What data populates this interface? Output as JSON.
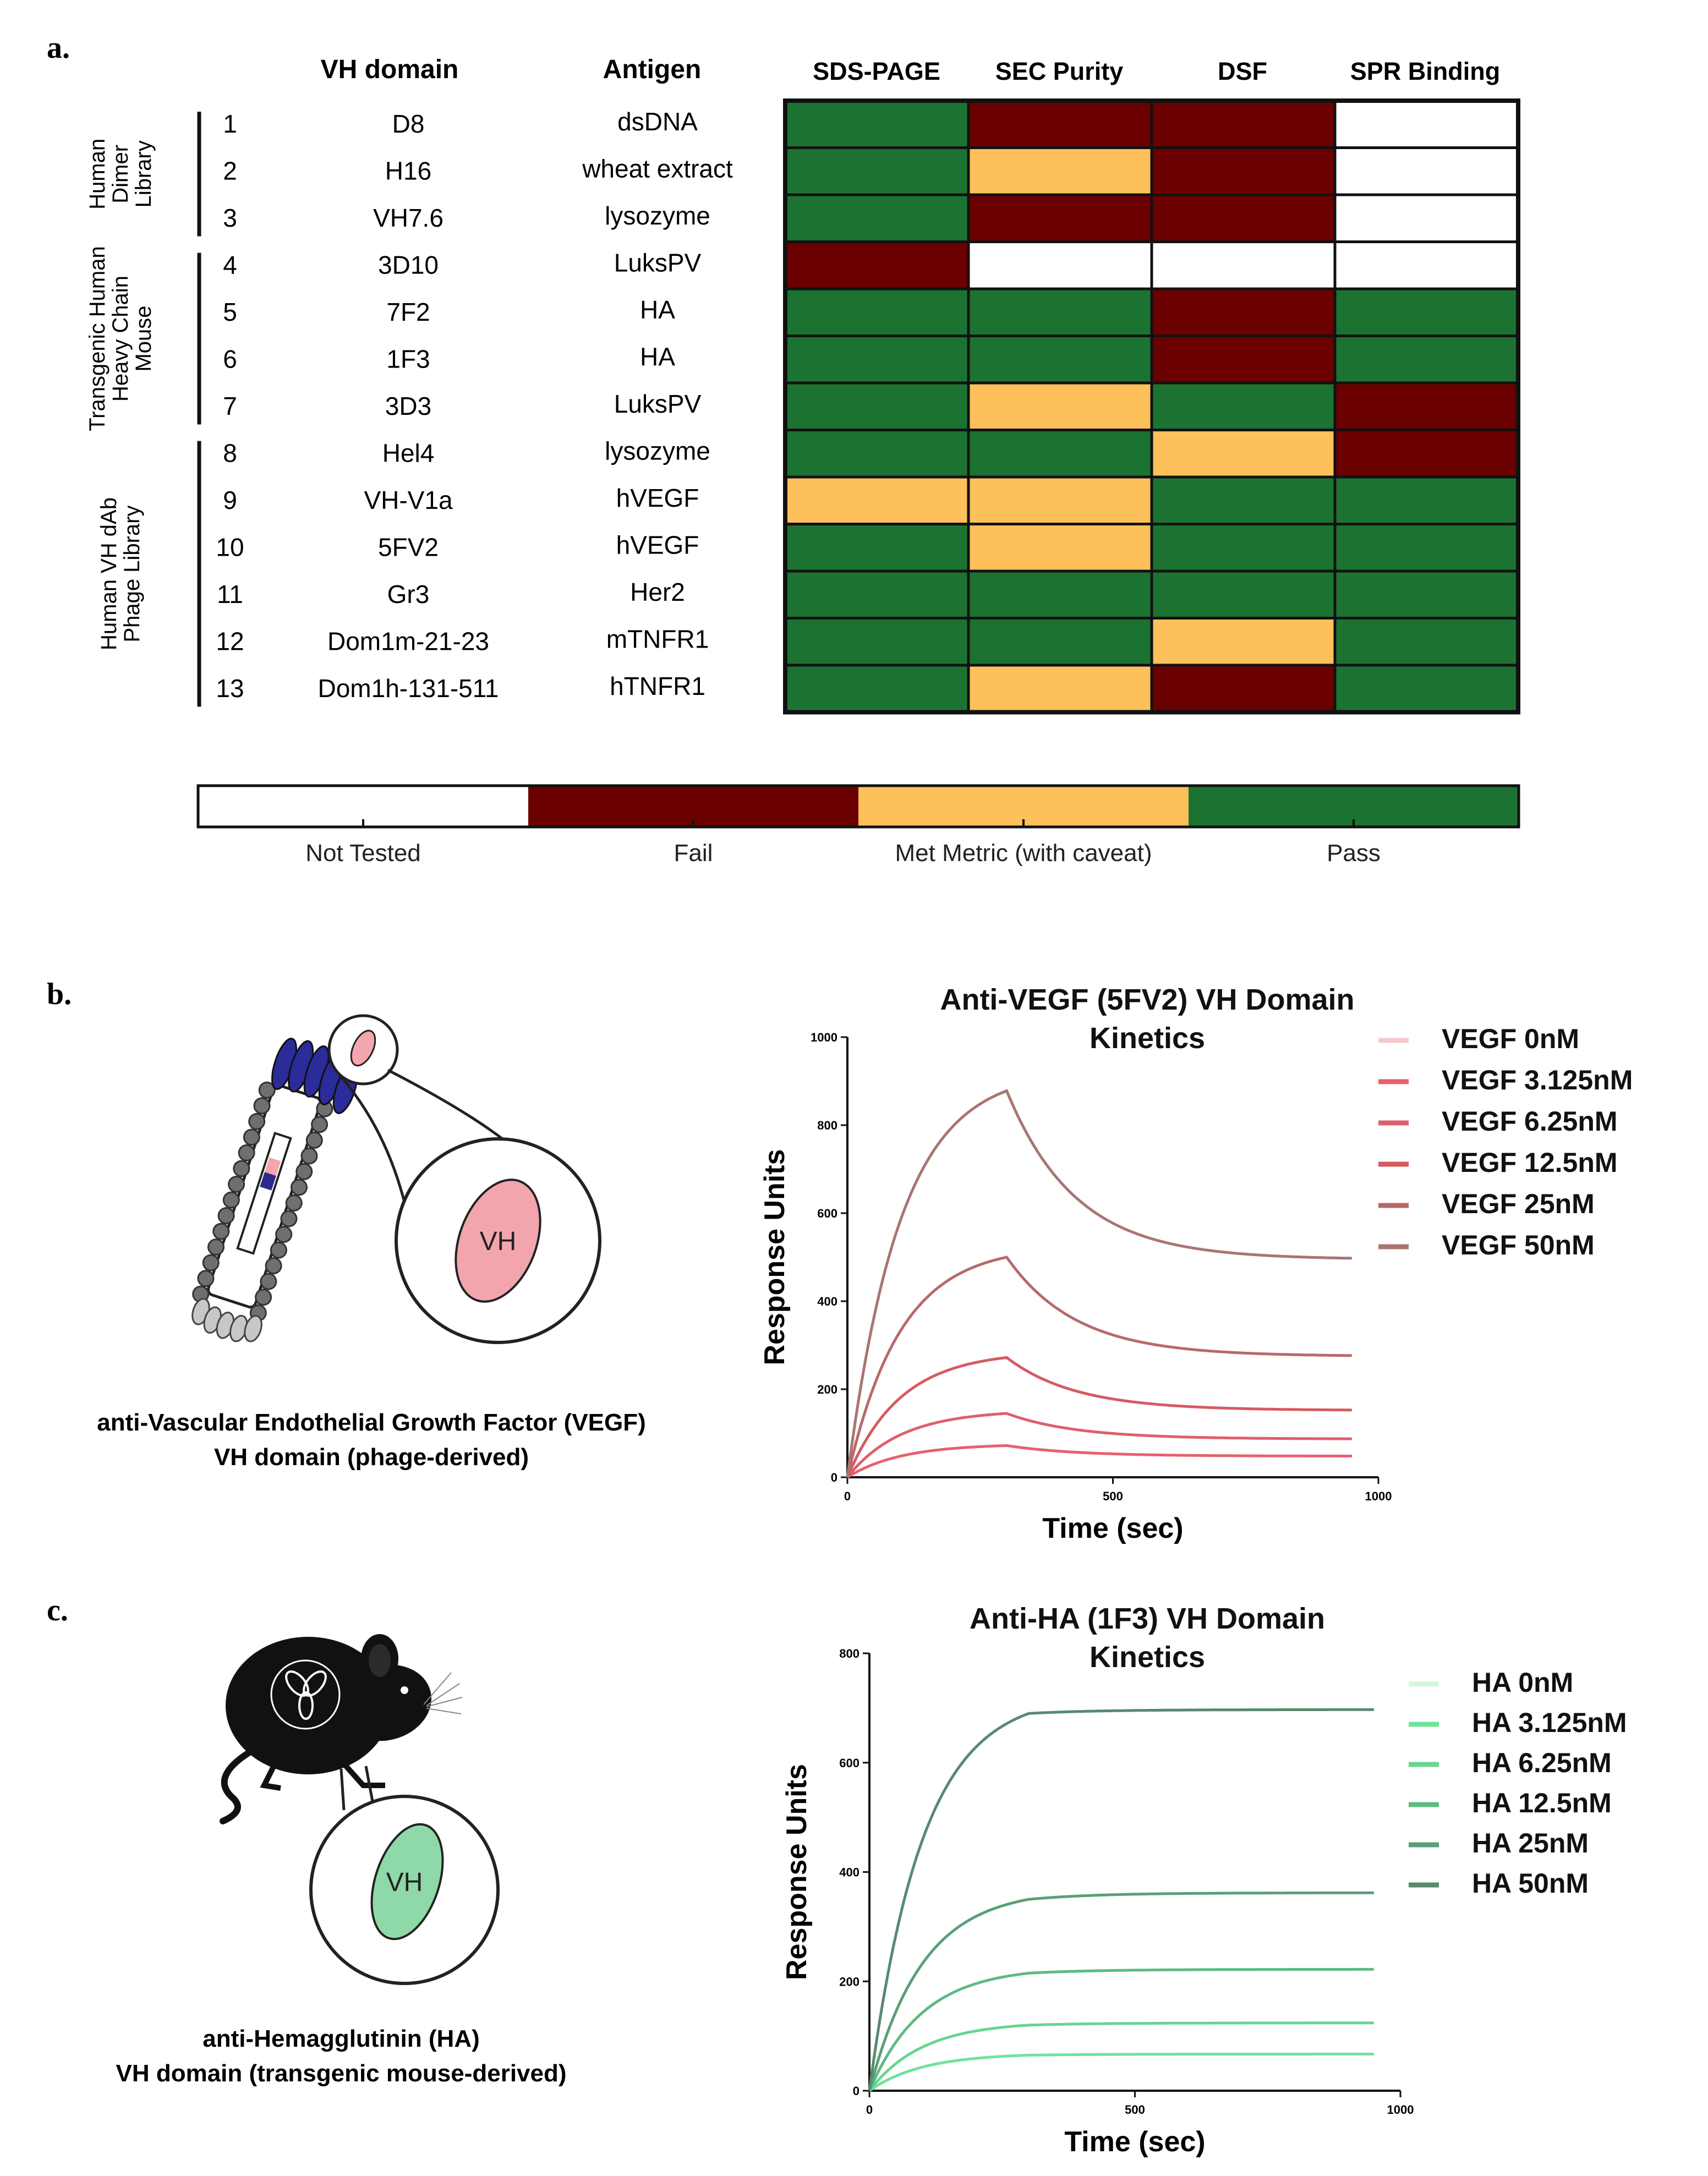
{
  "panel_a": {
    "label": "a.",
    "headers": {
      "vh_domain": "VH domain",
      "antigen": "Antigen"
    },
    "assays": [
      "SDS-PAGE",
      "SEC Purity",
      "DSF",
      "SPR Binding"
    ],
    "groups": [
      {
        "lines": [
          "Human",
          "Dimer",
          "Library"
        ],
        "rows": [
          0,
          2
        ]
      },
      {
        "lines": [
          "Transgenic Human",
          "Heavy Chain",
          "Mouse"
        ],
        "rows": [
          3,
          6
        ]
      },
      {
        "lines": [
          "Human VH dAb",
          "Phage Library"
        ],
        "rows": [
          7,
          12
        ]
      }
    ],
    "rows": [
      {
        "num": "1",
        "domain": "D8",
        "antigen": "dsDNA",
        "status": [
          "pass",
          "fail",
          "fail",
          "not"
        ]
      },
      {
        "num": "2",
        "domain": "H16",
        "antigen": "wheat extract",
        "status": [
          "pass",
          "caveat",
          "fail",
          "not"
        ]
      },
      {
        "num": "3",
        "domain": "VH7.6",
        "antigen": "lysozyme",
        "status": [
          "pass",
          "fail",
          "fail",
          "not"
        ]
      },
      {
        "num": "4",
        "domain": "3D10",
        "antigen": "LuksPV",
        "status": [
          "fail",
          "not",
          "not",
          "not"
        ]
      },
      {
        "num": "5",
        "domain": "7F2",
        "antigen": "HA",
        "status": [
          "pass",
          "pass",
          "fail",
          "pass"
        ]
      },
      {
        "num": "6",
        "domain": "1F3",
        "antigen": "HA",
        "status": [
          "pass",
          "pass",
          "fail",
          "pass"
        ]
      },
      {
        "num": "7",
        "domain": "3D3",
        "antigen": "LuksPV",
        "status": [
          "pass",
          "caveat",
          "pass",
          "fail"
        ]
      },
      {
        "num": "8",
        "domain": "Hel4",
        "antigen": "lysozyme",
        "status": [
          "pass",
          "pass",
          "caveat",
          "fail"
        ]
      },
      {
        "num": "9",
        "domain": "VH-V1a",
        "antigen": "hVEGF",
        "status": [
          "caveat",
          "caveat",
          "pass",
          "pass"
        ]
      },
      {
        "num": "10",
        "domain": "5FV2",
        "antigen": "hVEGF",
        "status": [
          "pass",
          "caveat",
          "pass",
          "pass"
        ]
      },
      {
        "num": "11",
        "domain": "Gr3",
        "antigen": "Her2",
        "status": [
          "pass",
          "pass",
          "pass",
          "pass"
        ]
      },
      {
        "num": "12",
        "domain": "Dom1m-21-23",
        "antigen": "mTNFR1",
        "status": [
          "pass",
          "pass",
          "caveat",
          "pass"
        ]
      },
      {
        "num": "13",
        "domain": "Dom1h-131-511",
        "antigen": "hTNFR1",
        "status": [
          "pass",
          "caveat",
          "fail",
          "pass"
        ]
      }
    ],
    "legend": [
      {
        "key": "not",
        "label": "Not Tested",
        "color": "#ffffff"
      },
      {
        "key": "fail",
        "label": "Fail",
        "color": "#6b0000"
      },
      {
        "key": "caveat",
        "label": "Met Metric (with caveat)",
        "color": "#fdc05a"
      },
      {
        "key": "pass",
        "label": "Pass",
        "color": "#1c7331"
      }
    ]
  },
  "panel_b": {
    "label": "b.",
    "caption": [
      "anti-Vascular Endothelial Growth Factor (VEGF)",
      "VH domain (phage-derived)"
    ],
    "vh_label": "VH"
  },
  "panel_c": {
    "label": "c.",
    "caption": [
      "anti-Hemagglutinin (HA)",
      "VH domain (transgenic mouse-derived)"
    ],
    "vh_label": "VH"
  },
  "chart_data": [
    {
      "type": "line",
      "title": [
        "Anti-VEGF (5FV2) VH Domain",
        "Kinetics"
      ],
      "xlabel": "Time (sec)",
      "ylabel": "Response Units",
      "xlim": [
        0,
        1000
      ],
      "ylim": [
        0,
        1000
      ],
      "xticks": [
        0,
        500,
        1000
      ],
      "yticks": [
        0,
        200,
        400,
        600,
        800,
        1000
      ],
      "switch_time": 300,
      "end_time": 950,
      "legend_position": "top-right",
      "series": [
        {
          "name": "VEGF 0nM",
          "color": "#f7c9cf",
          "peak": 0,
          "end": 0
        },
        {
          "name": "VEGF 3.125nM",
          "color": "#e8606e",
          "peak": 72,
          "end": 48
        },
        {
          "name": "VEGF 6.25nM",
          "color": "#de5f6a",
          "peak": 145,
          "end": 87
        },
        {
          "name": "VEGF 12.5nM",
          "color": "#d65a62",
          "peak": 272,
          "end": 152
        },
        {
          "name": "VEGF 25nM",
          "color": "#b8696b",
          "peak": 500,
          "end": 275
        },
        {
          "name": "VEGF 50nM",
          "color": "#a87572",
          "peak": 878,
          "end": 495
        }
      ]
    },
    {
      "type": "line",
      "title": [
        "Anti-HA (1F3) VH Domain",
        "Kinetics"
      ],
      "xlabel": "Time (sec)",
      "ylabel": "Response Units",
      "xlim": [
        0,
        1000
      ],
      "ylim": [
        0,
        800
      ],
      "xticks": [
        0,
        500,
        1000
      ],
      "yticks": [
        0,
        200,
        400,
        600,
        800
      ],
      "switch_time": 300,
      "end_time": 950,
      "legend_position": "top-right",
      "series": [
        {
          "name": "HA 0nM",
          "color": "#d6f5dd",
          "peak": 0,
          "end": 0
        },
        {
          "name": "HA 3.125nM",
          "color": "#6fe39a",
          "peak": 65,
          "end": 67
        },
        {
          "name": "HA 6.25nM",
          "color": "#67d690",
          "peak": 120,
          "end": 124
        },
        {
          "name": "HA 12.5nM",
          "color": "#5dba84",
          "peak": 215,
          "end": 222
        },
        {
          "name": "HA 25nM",
          "color": "#5a9f78",
          "peak": 350,
          "end": 362
        },
        {
          "name": "HA 50nM",
          "color": "#588a6f",
          "peak": 690,
          "end": 697
        }
      ]
    }
  ]
}
